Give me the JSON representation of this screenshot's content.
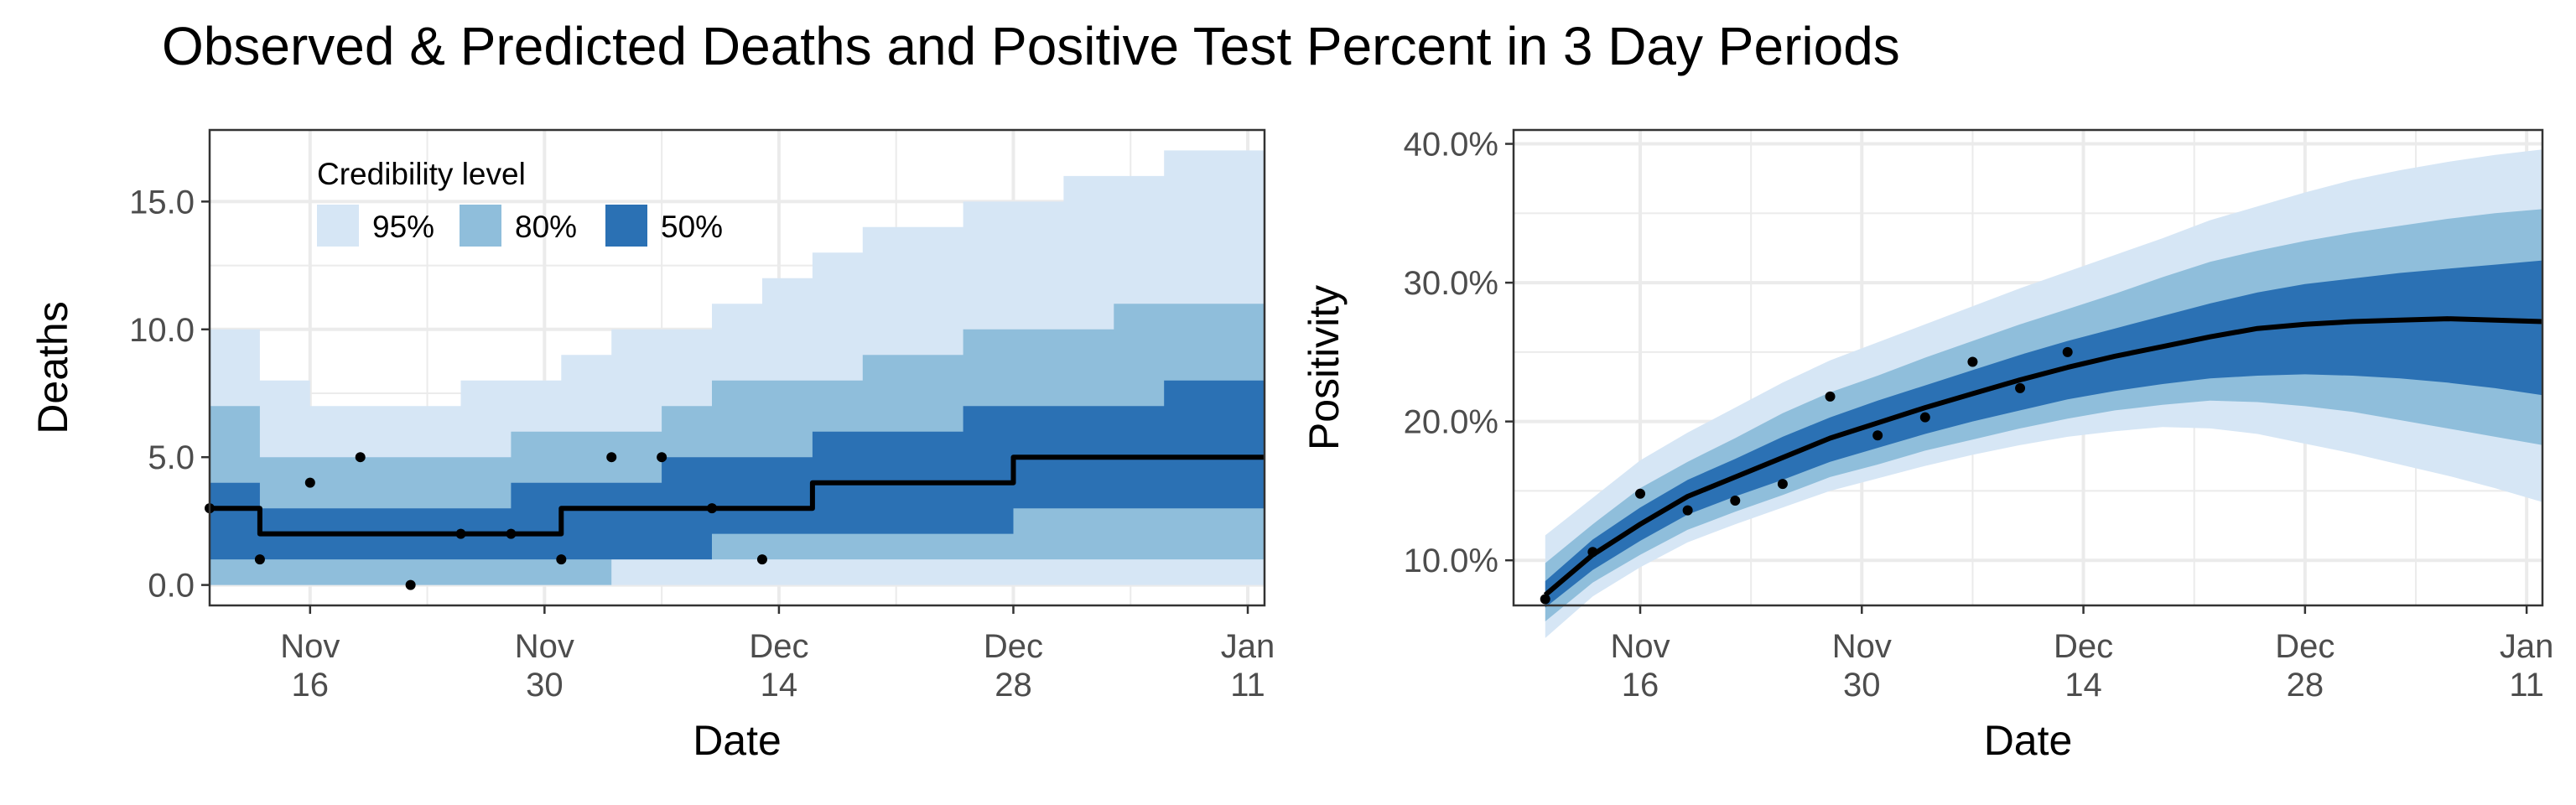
{
  "title": "Observed & Predicted Deaths and Positive Test Percent in 3 Day Periods",
  "colors": {
    "ci95": "#d6e6f5",
    "ci80": "#8fbedb",
    "ci50": "#2b71b4",
    "median": "#000000",
    "points": "#000000",
    "grid": "#ebebeb",
    "border": "#333333"
  },
  "legend": {
    "title": "Credibility level",
    "items": [
      {
        "label": "95%",
        "color": "#d6e6f5"
      },
      {
        "label": "80%",
        "color": "#8fbedb"
      },
      {
        "label": "50%",
        "color": "#2b71b4"
      }
    ]
  },
  "chart_data": [
    {
      "type": "area",
      "name": "deaths-panel",
      "xlabel": "Date",
      "ylabel": "Deaths",
      "xlim": [
        "2020-11-10",
        "2021-01-12"
      ],
      "ylim": [
        -0.8,
        17.8
      ],
      "xticks": [
        {
          "date": "2020-11-16",
          "line1": "Nov",
          "line2": "16"
        },
        {
          "date": "2020-11-30",
          "line1": "Nov",
          "line2": "30"
        },
        {
          "date": "2020-12-14",
          "line1": "Dec",
          "line2": "14"
        },
        {
          "date": "2020-12-28",
          "line1": "Dec",
          "line2": "28"
        },
        {
          "date": "2021-01-11",
          "line1": "Jan",
          "line2": "11"
        }
      ],
      "yticks": [
        {
          "value": 0,
          "label": "0.0"
        },
        {
          "value": 5,
          "label": "5.0"
        },
        {
          "value": 10,
          "label": "10.0"
        },
        {
          "value": 15,
          "label": "15.0"
        }
      ],
      "step": true,
      "dates": [
        "2020-11-10",
        "2020-11-13",
        "2020-11-16",
        "2020-11-19",
        "2020-11-22",
        "2020-11-25",
        "2020-11-28",
        "2020-12-01",
        "2020-12-04",
        "2020-12-07",
        "2020-12-10",
        "2020-12-13",
        "2020-12-16",
        "2020-12-19",
        "2020-12-22",
        "2020-12-25",
        "2020-12-28",
        "2020-12-31",
        "2021-01-03",
        "2021-01-06",
        "2021-01-09",
        "2021-01-12"
      ],
      "median": [
        3,
        2,
        2,
        2,
        2,
        2,
        2,
        3,
        3,
        3,
        3,
        3,
        4,
        4,
        4,
        4,
        5,
        5,
        5,
        5,
        5,
        5
      ],
      "lo50": [
        1,
        1,
        1,
        1,
        1,
        1,
        1,
        1,
        1,
        1,
        2,
        2,
        2,
        2,
        2,
        2,
        3,
        3,
        3,
        3,
        3,
        3
      ],
      "hi50": [
        4,
        3,
        3,
        3,
        3,
        3,
        4,
        4,
        4,
        5,
        5,
        5,
        6,
        6,
        6,
        7,
        7,
        7,
        7,
        8,
        8,
        8
      ],
      "lo80": [
        0,
        0,
        0,
        0,
        0,
        0,
        0,
        0,
        1,
        1,
        1,
        1,
        1,
        1,
        1,
        1,
        1,
        1,
        1,
        1,
        1,
        1
      ],
      "hi80": [
        7,
        5,
        5,
        5,
        5,
        5,
        6,
        6,
        6,
        7,
        8,
        8,
        8,
        9,
        9,
        10,
        10,
        10,
        11,
        11,
        11,
        11
      ],
      "lo95": [
        0,
        0,
        0,
        0,
        0,
        0,
        0,
        0,
        0,
        0,
        0,
        0,
        0,
        0,
        0,
        0,
        0,
        0,
        0,
        0,
        0,
        0
      ],
      "hi95": [
        10,
        8,
        7,
        7,
        7,
        8,
        8,
        9,
        10,
        10,
        11,
        12,
        13,
        14,
        14,
        15,
        15,
        16,
        16,
        17,
        17,
        17
      ],
      "observed": [
        {
          "date": "2020-11-10",
          "value": 3
        },
        {
          "date": "2020-11-13",
          "value": 1
        },
        {
          "date": "2020-11-16",
          "value": 4
        },
        {
          "date": "2020-11-19",
          "value": 5
        },
        {
          "date": "2020-11-22",
          "value": 0
        },
        {
          "date": "2020-11-25",
          "value": 2
        },
        {
          "date": "2020-11-28",
          "value": 2
        },
        {
          "date": "2020-12-01",
          "value": 1
        },
        {
          "date": "2020-12-04",
          "value": 5
        },
        {
          "date": "2020-12-07",
          "value": 5
        },
        {
          "date": "2020-12-10",
          "value": 3
        },
        {
          "date": "2020-12-13",
          "value": 1
        }
      ]
    },
    {
      "type": "area",
      "name": "positivity-panel",
      "xlabel": "Date",
      "ylabel": "Positivity",
      "xlim": [
        "2020-11-08",
        "2021-01-12"
      ],
      "ylim": [
        6.75,
        41.0
      ],
      "xticks": [
        {
          "date": "2020-11-16",
          "line1": "Nov",
          "line2": "16"
        },
        {
          "date": "2020-11-30",
          "line1": "Nov",
          "line2": "30"
        },
        {
          "date": "2020-12-14",
          "line1": "Dec",
          "line2": "14"
        },
        {
          "date": "2020-12-28",
          "line1": "Dec",
          "line2": "28"
        },
        {
          "date": "2021-01-11",
          "line1": "Jan",
          "line2": "11"
        }
      ],
      "yticks": [
        {
          "value": 10,
          "label": "10.0%"
        },
        {
          "value": 20,
          "label": "20.0%"
        },
        {
          "value": 30,
          "label": "30.0%"
        },
        {
          "value": 40,
          "label": "40.0%"
        }
      ],
      "step": false,
      "dates": [
        "2020-11-10",
        "2020-11-13",
        "2020-11-16",
        "2020-11-19",
        "2020-11-22",
        "2020-11-25",
        "2020-11-28",
        "2020-12-01",
        "2020-12-04",
        "2020-12-07",
        "2020-12-10",
        "2020-12-13",
        "2020-12-16",
        "2020-12-19",
        "2020-12-22",
        "2020-12-25",
        "2020-12-28",
        "2020-12-31",
        "2021-01-03",
        "2021-01-06",
        "2021-01-09",
        "2021-01-12"
      ],
      "median": [
        7.5,
        10.4,
        12.6,
        14.6,
        16.0,
        17.4,
        18.8,
        19.9,
        21.0,
        22.0,
        23.0,
        23.9,
        24.7,
        25.4,
        26.1,
        26.7,
        27.0,
        27.2,
        27.3,
        27.4,
        27.3,
        27.2
      ],
      "lo50": [
        6.6,
        9.3,
        11.4,
        13.3,
        14.6,
        15.8,
        17.1,
        18.1,
        19.1,
        20.0,
        20.8,
        21.6,
        22.2,
        22.7,
        23.1,
        23.3,
        23.4,
        23.3,
        23.1,
        22.8,
        22.4,
        21.9
      ],
      "hi50": [
        8.5,
        11.5,
        13.8,
        15.8,
        17.3,
        18.9,
        20.3,
        21.5,
        22.6,
        23.7,
        24.8,
        25.8,
        26.7,
        27.6,
        28.5,
        29.3,
        29.9,
        30.3,
        30.7,
        31.0,
        31.3,
        31.6
      ],
      "lo80": [
        5.6,
        8.4,
        10.4,
        12.2,
        13.5,
        14.7,
        16.0,
        16.9,
        17.9,
        18.7,
        19.5,
        20.2,
        20.8,
        21.2,
        21.5,
        21.4,
        21.1,
        20.7,
        20.1,
        19.5,
        18.9,
        18.3
      ],
      "hi80": [
        9.8,
        12.6,
        15.2,
        17.1,
        18.8,
        20.6,
        22.1,
        23.3,
        24.6,
        25.8,
        27.0,
        28.1,
        29.2,
        30.4,
        31.5,
        32.3,
        33.0,
        33.6,
        34.1,
        34.6,
        35.0,
        35.3
      ],
      "lo95": [
        4.4,
        7.4,
        9.5,
        11.3,
        12.6,
        13.8,
        15.0,
        15.9,
        16.8,
        17.6,
        18.3,
        18.9,
        19.3,
        19.6,
        19.5,
        19.1,
        18.4,
        17.7,
        16.9,
        16.1,
        15.2,
        14.2
      ],
      "hi95": [
        11.8,
        14.5,
        17.2,
        19.2,
        21.0,
        22.8,
        24.4,
        25.7,
        27.0,
        28.3,
        29.6,
        30.8,
        32.0,
        33.2,
        34.5,
        35.5,
        36.5,
        37.4,
        38.1,
        38.7,
        39.2,
        39.6
      ],
      "observed": [
        {
          "date": "2020-11-10",
          "value": 7.2
        },
        {
          "date": "2020-11-13",
          "value": 10.6
        },
        {
          "date": "2020-11-16",
          "value": 14.8
        },
        {
          "date": "2020-11-19",
          "value": 13.6
        },
        {
          "date": "2020-11-22",
          "value": 14.3
        },
        {
          "date": "2020-11-25",
          "value": 15.5
        },
        {
          "date": "2020-11-28",
          "value": 21.8
        },
        {
          "date": "2020-12-01",
          "value": 19.0
        },
        {
          "date": "2020-12-04",
          "value": 20.3
        },
        {
          "date": "2020-12-07",
          "value": 24.3
        },
        {
          "date": "2020-12-10",
          "value": 22.4
        },
        {
          "date": "2020-12-13",
          "value": 25.0
        }
      ]
    }
  ]
}
